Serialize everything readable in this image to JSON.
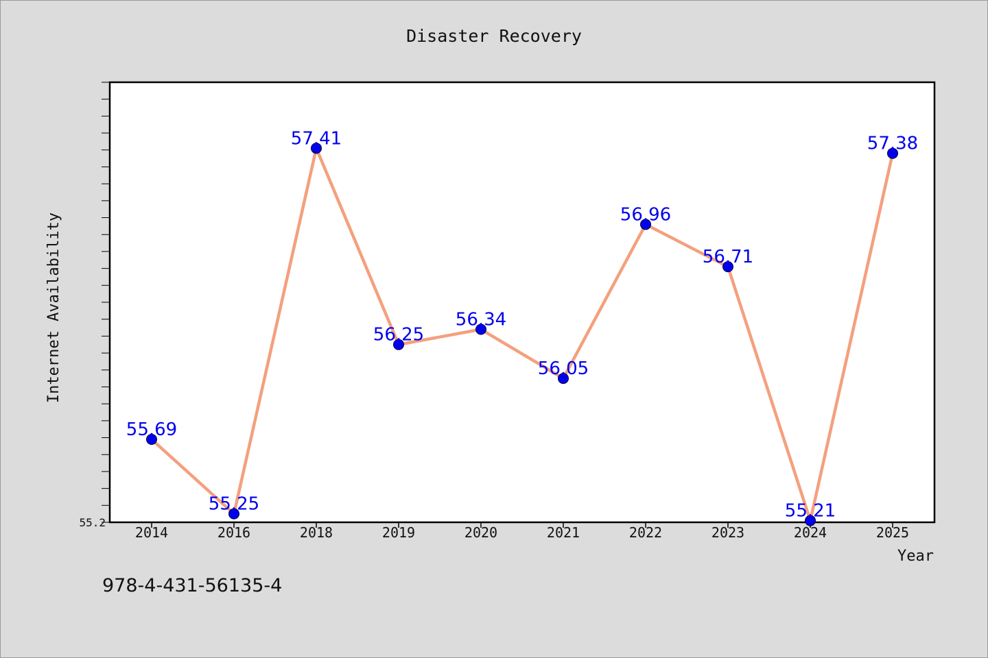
{
  "chart_data": {
    "type": "line",
    "title": "Disaster Recovery",
    "xlabel": "Year",
    "ylabel": "Internet Availability",
    "categories": [
      "2014",
      "2016",
      "2018",
      "2019",
      "2020",
      "2021",
      "2022",
      "2023",
      "2024",
      "2025"
    ],
    "series": [
      {
        "values": [
          55.69,
          55.25,
          57.41,
          56.25,
          56.34,
          56.05,
          56.96,
          56.71,
          55.21,
          57.38
        ],
        "labels": [
          "55.69",
          "55.25",
          "57.41",
          "56.25",
          "56.34",
          "56.05",
          "56.96",
          "56.71",
          "55.21",
          "57.38"
        ]
      }
    ],
    "y_tick_labels": [
      "55.2"
    ],
    "ylim": [
      55.2,
      57.8
    ],
    "grid": false,
    "legend": "none"
  },
  "footer": {
    "code": "978-4-431-56135-4"
  },
  "colors": {
    "background": "#dcdcdc",
    "plot_background": "#ffffff",
    "line": "#f4a07e",
    "marker": "#0000ee",
    "data_label": "#0000ee",
    "axis": "#000000"
  }
}
